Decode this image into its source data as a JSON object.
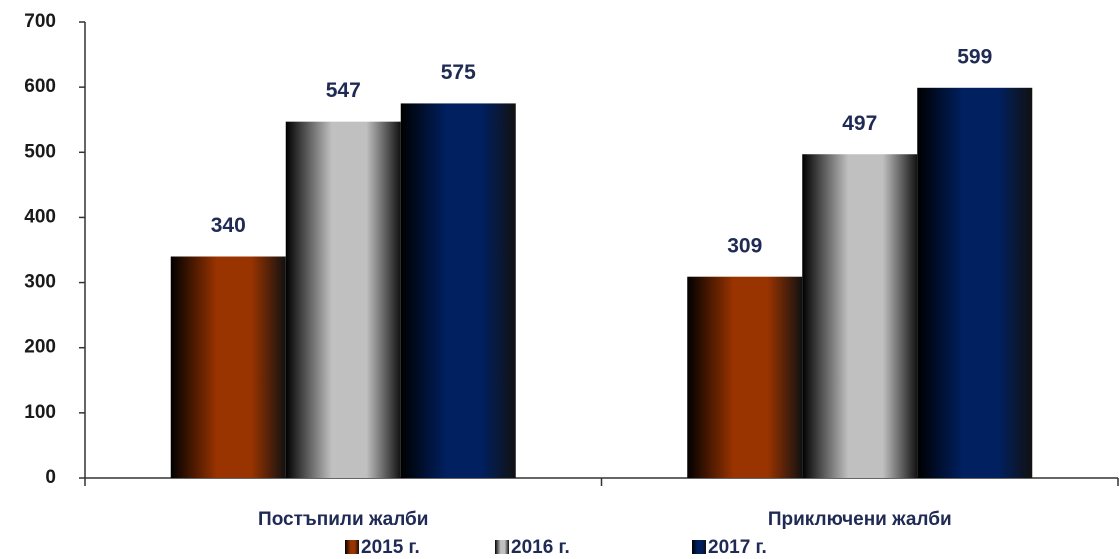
{
  "chart_data": {
    "type": "bar",
    "categories": [
      "Постъпили жалби",
      "Приключени жалби"
    ],
    "series": [
      {
        "name": "2015 г.",
        "color": "#993300",
        "values": [
          340,
          309
        ]
      },
      {
        "name": "2016 г.",
        "color": "#c0c0c0",
        "values": [
          547,
          497
        ]
      },
      {
        "name": "2017 г.",
        "color": "#002060",
        "values": [
          575,
          599
        ]
      }
    ],
    "ylim": [
      0,
      700
    ],
    "yticks": [
      0,
      100,
      200,
      300,
      400,
      500,
      600,
      700
    ],
    "grid": false,
    "legend": "bottom"
  }
}
